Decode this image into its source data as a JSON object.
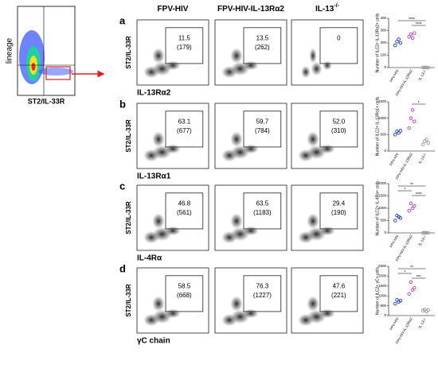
{
  "gating": {
    "y_label": "lineage",
    "x_label": "ST2/IL-33R"
  },
  "columns": [
    {
      "base": "FPV-HIV"
    },
    {
      "base": "FPV-HIV-IL-13Rα2"
    },
    {
      "base": "IL-13",
      "sup": "-/-"
    }
  ],
  "groups": [
    "FPV-HIV",
    "FPV-HIV-IL-13Rα2",
    "IL-13-/-"
  ],
  "rows": [
    {
      "letter": "a",
      "x_label": "IL-13Rα2",
      "y_label": "ST2/IL-33R",
      "gates": [
        {
          "pct": "11.5",
          "count": "(179)"
        },
        {
          "pct": "13.5",
          "count": "(262)"
        },
        {
          "pct": "0"
        }
      ],
      "dot": {
        "y_label": "Number of ILC2+ IL-13Rα2+ cells",
        "ylim": [
          0,
          400
        ],
        "yticks": [
          0,
          100,
          200,
          300,
          400
        ],
        "points": [
          [
            180,
            210,
            230,
            200
          ],
          [
            250,
            270,
            240,
            280
          ],
          [
            0,
            0,
            0,
            0
          ]
        ],
        "stars": [
          "****",
          "****"
        ]
      }
    },
    {
      "letter": "b",
      "x_label": "IL-13Rα1",
      "y_label": "ST2/IL-33R",
      "gates": [
        {
          "pct": "63.1",
          "count": "(677)"
        },
        {
          "pct": "59.7",
          "count": "(784)"
        },
        {
          "pct": "52.0",
          "count": "(310)"
        }
      ],
      "dot": {
        "y_label": "Number of ILC2+ IL-13Rα1+ cells",
        "ylim": [
          0,
          1500
        ],
        "yticks": [
          0,
          500,
          1000,
          1500
        ],
        "points": [
          [
            500,
            600,
            550,
            620
          ],
          [
            700,
            1000,
            1250,
            900
          ],
          [
            200,
            300,
            350,
            250
          ]
        ],
        "stars": [
          "*"
        ]
      }
    },
    {
      "letter": "c",
      "x_label": "IL-4Rα",
      "y_label": "ST2/IL-33R",
      "gates": [
        {
          "pct": "46.8",
          "count": "(561)"
        },
        {
          "pct": "63.5",
          "count": "(1183)"
        },
        {
          "pct": "29.4",
          "count": "(190)"
        }
      ],
      "dot": {
        "y_label": "Number of ILC2+ IL-4Rα+ cells",
        "ylim": [
          0,
          2000
        ],
        "yticks": [
          0,
          500,
          1000,
          1500,
          2000
        ],
        "points": [
          [
            500,
            700,
            650,
            600
          ],
          [
            900,
            1200,
            1000,
            1100
          ],
          [
            0,
            10,
            5,
            0
          ]
        ],
        "stars": [
          "**",
          "*",
          "****"
        ]
      }
    },
    {
      "letter": "d",
      "x_label": "γC chain",
      "y_label": "ST2/IL-33R",
      "gates": [
        {
          "pct": "58.5",
          "count": "(668)"
        },
        {
          "pct": "76.3",
          "count": "(1227)"
        },
        {
          "pct": "47.6",
          "count": "(221)"
        }
      ],
      "dot": {
        "y_label": "Number of ILC2+ γC+ cells",
        "ylim": [
          0,
          2500
        ],
        "yticks": [
          0,
          500,
          1000,
          1500,
          2000,
          2500
        ],
        "points": [
          [
            600,
            800,
            700,
            750
          ],
          [
            1100,
            1700,
            1300,
            1400
          ],
          [
            250,
            300,
            200,
            280
          ]
        ],
        "stars": [
          "**",
          "*",
          "***"
        ]
      }
    }
  ],
  "colors": [
    "#1f3fbf",
    "#c23ec2",
    "#999999"
  ]
}
